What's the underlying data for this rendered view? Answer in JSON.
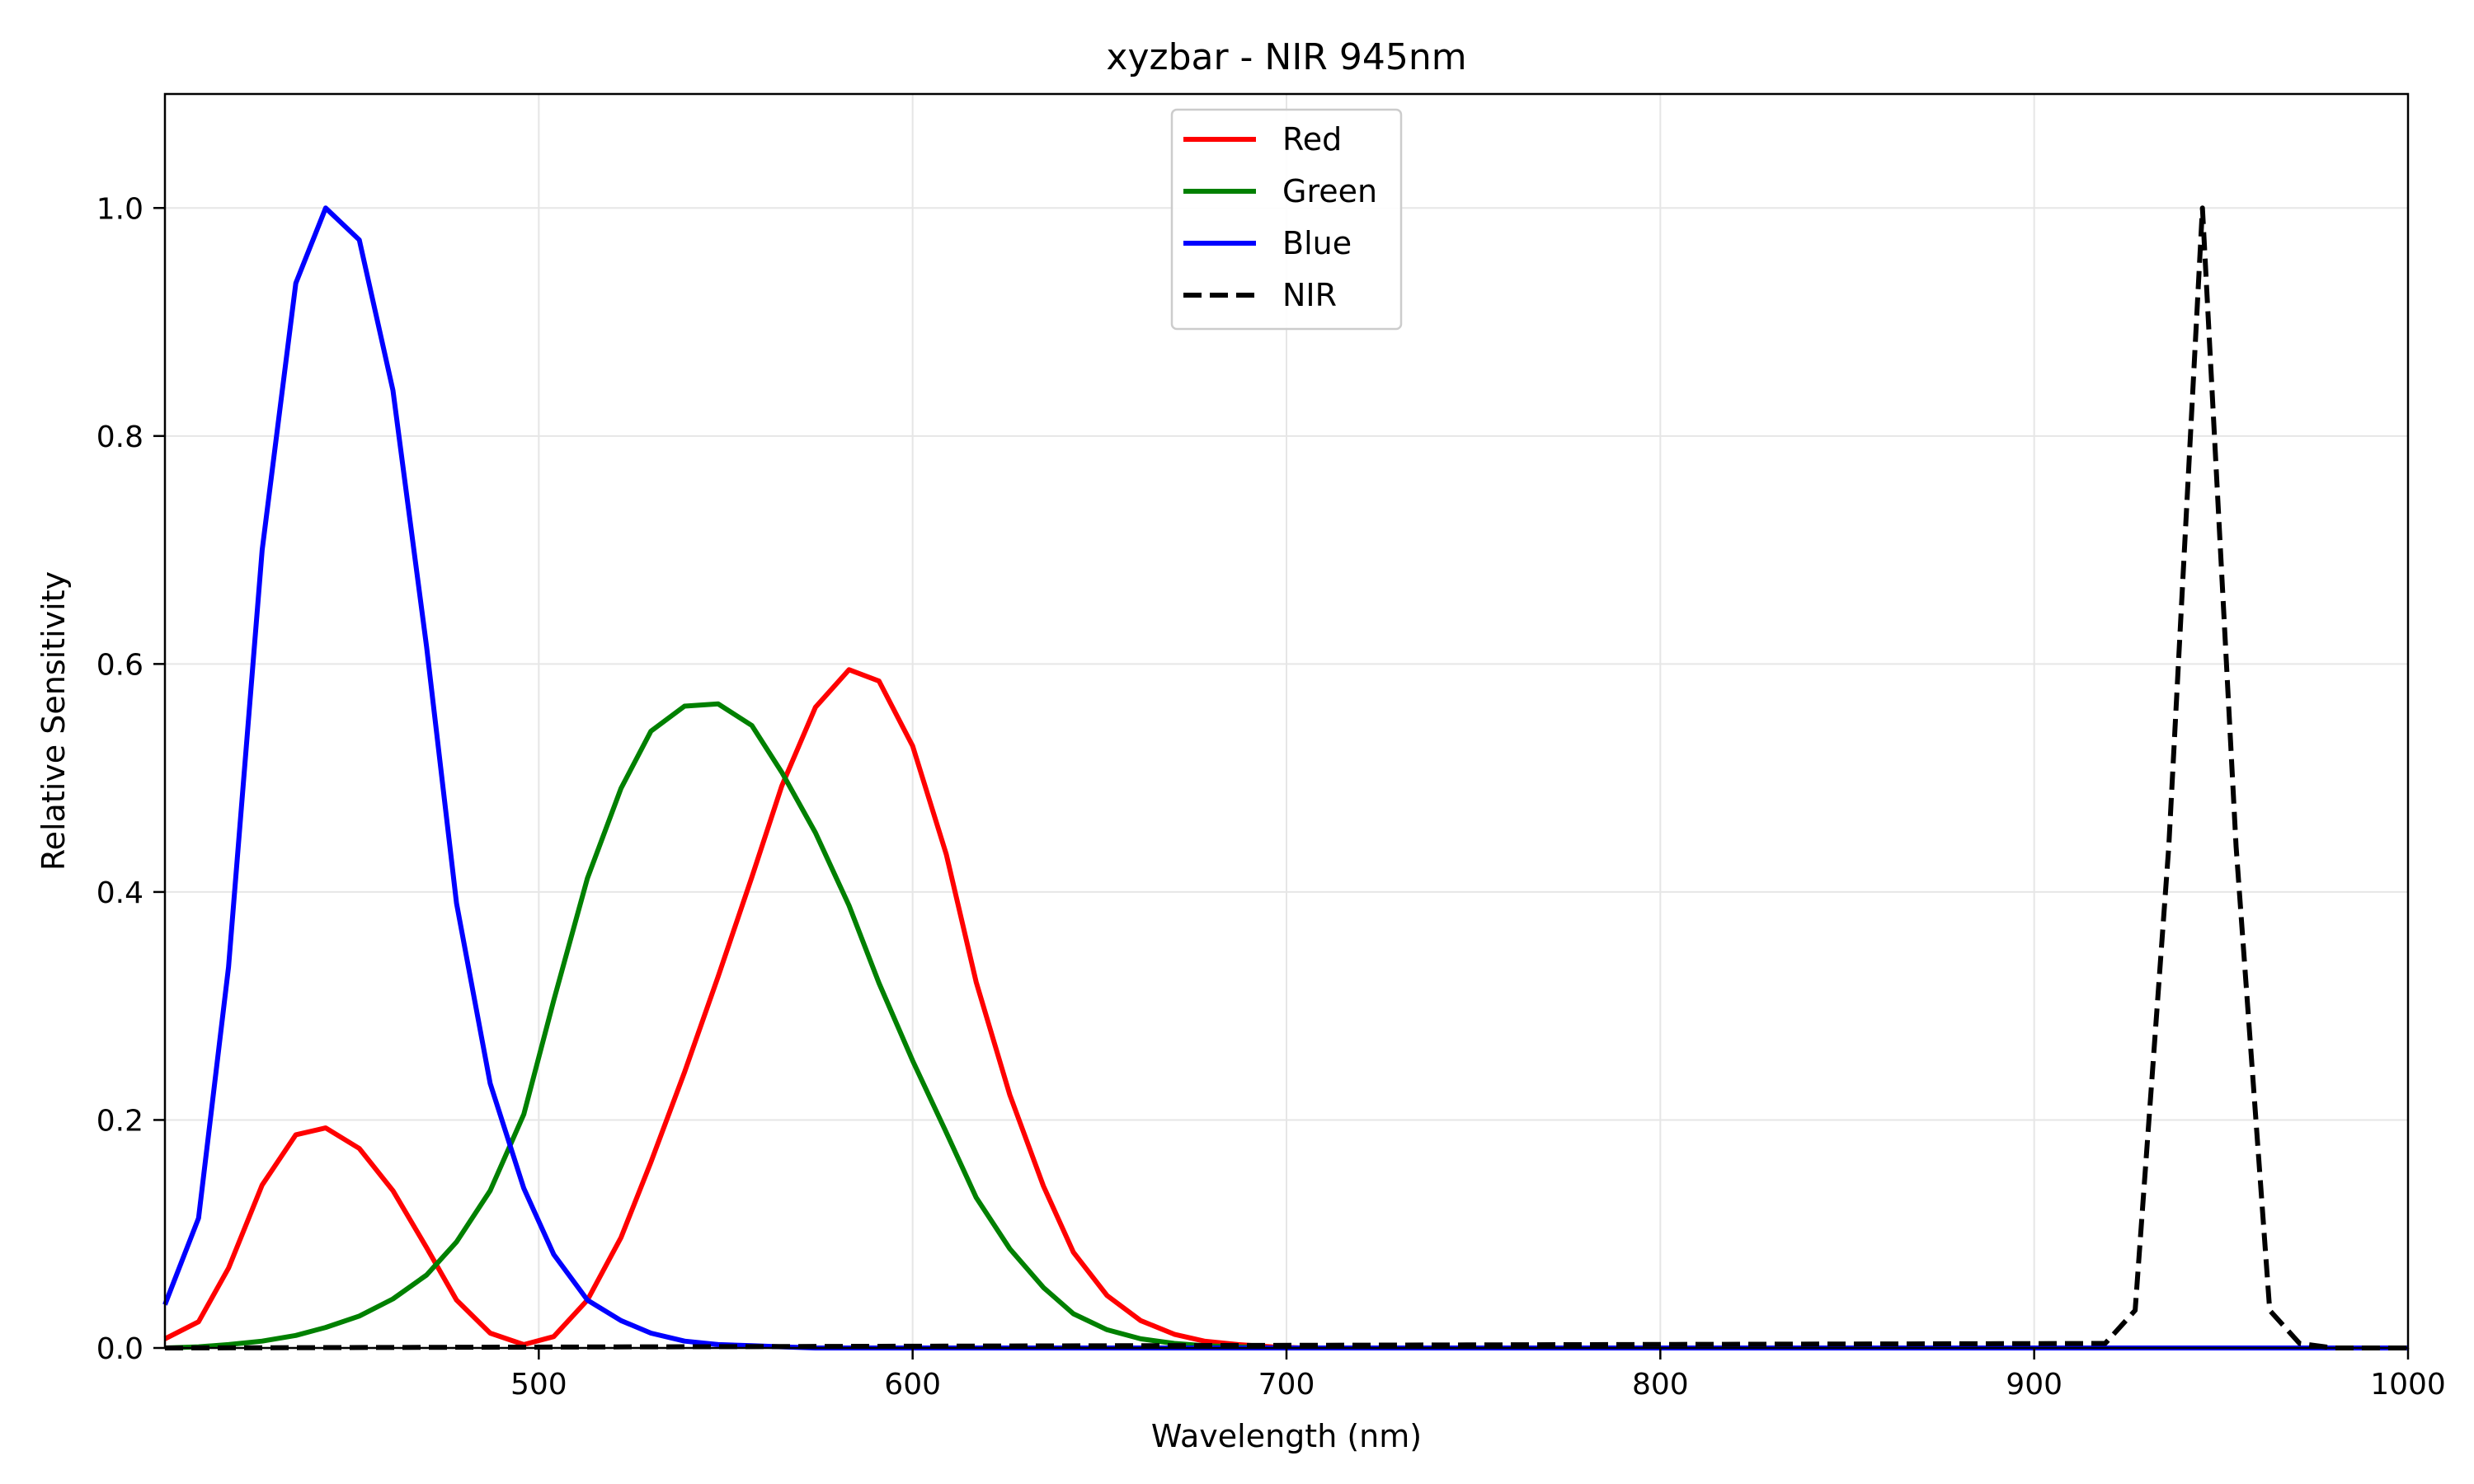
{
  "chart_data": {
    "type": "line",
    "title": "xyzbar - NIR 945nm",
    "xlabel": "Wavelength (nm)",
    "ylabel": "Relative Sensitivity",
    "xlim": [
      400,
      1000
    ],
    "ylim": [
      0,
      1.1
    ],
    "grid": true,
    "legend_position": "top-center",
    "x_ticks": [
      500,
      600,
      700,
      800,
      900,
      1000
    ],
    "x_tick_labels": [
      "500",
      "600",
      "700",
      "800",
      "900",
      "1000"
    ],
    "y_ticks": [
      0.0,
      0.2,
      0.4,
      0.6,
      0.8,
      1.0
    ],
    "y_tick_labels": [
      "0.0",
      "0.2",
      "0.4",
      "0.6",
      "0.8",
      "1.0"
    ],
    "series": [
      {
        "name": "Red",
        "color": "#ff0000",
        "dash": "solid",
        "x": [
          400,
          409,
          417,
          426,
          435,
          443,
          452,
          461,
          470,
          478,
          487,
          496,
          504,
          513,
          522,
          530,
          539,
          548,
          557,
          565,
          574,
          583,
          591,
          600,
          609,
          617,
          626,
          635,
          643,
          652,
          661,
          670,
          678,
          687,
          696,
          704,
          720,
          750,
          800,
          900,
          1000
        ],
        "y": [
          0.008,
          0.023,
          0.07,
          0.143,
          0.187,
          0.193,
          0.175,
          0.138,
          0.088,
          0.042,
          0.013,
          0.003,
          0.01,
          0.042,
          0.097,
          0.163,
          0.242,
          0.326,
          0.413,
          0.493,
          0.562,
          0.595,
          0.585,
          0.528,
          0.433,
          0.321,
          0.222,
          0.142,
          0.084,
          0.046,
          0.024,
          0.012,
          0.006,
          0.003,
          0.001,
          0.0,
          0.0,
          0.0,
          0.0,
          0.0,
          0.0
        ]
      },
      {
        "name": "Green",
        "color": "#008000",
        "dash": "solid",
        "x": [
          400,
          409,
          417,
          426,
          435,
          443,
          452,
          461,
          470,
          478,
          487,
          496,
          504,
          513,
          522,
          530,
          539,
          548,
          557,
          565,
          574,
          583,
          591,
          600,
          609,
          617,
          626,
          635,
          643,
          652,
          661,
          670,
          678,
          687,
          696,
          704,
          720,
          750,
          800,
          900,
          1000
        ],
        "y": [
          0.0,
          0.001,
          0.003,
          0.006,
          0.011,
          0.018,
          0.028,
          0.043,
          0.064,
          0.093,
          0.138,
          0.205,
          0.305,
          0.412,
          0.491,
          0.541,
          0.563,
          0.565,
          0.546,
          0.505,
          0.452,
          0.388,
          0.32,
          0.252,
          0.189,
          0.132,
          0.087,
          0.053,
          0.03,
          0.016,
          0.008,
          0.004,
          0.002,
          0.001,
          0.0,
          0.0,
          0.0,
          0.0,
          0.0,
          0.0,
          0.0
        ]
      },
      {
        "name": "Blue",
        "color": "#0000ff",
        "dash": "solid",
        "x": [
          400,
          409,
          417,
          426,
          435,
          443,
          452,
          461,
          470,
          478,
          487,
          496,
          504,
          513,
          522,
          530,
          539,
          548,
          557,
          565,
          574,
          583,
          591,
          600,
          650,
          700,
          800,
          900,
          1000
        ],
        "y": [
          0.038,
          0.114,
          0.334,
          0.7,
          0.934,
          1.0,
          0.972,
          0.84,
          0.615,
          0.39,
          0.232,
          0.14,
          0.082,
          0.042,
          0.024,
          0.013,
          0.006,
          0.003,
          0.002,
          0.001,
          0.0,
          0.0,
          0.0,
          0.0,
          0.0,
          0.0,
          0.0,
          0.0,
          0.0
        ]
      },
      {
        "name": "NIR",
        "color": "#000000",
        "dash": "dashed",
        "x": [
          400,
          919,
          927,
          936,
          945,
          954,
          963,
          971,
          980,
          1000
        ],
        "y": [
          0.0,
          0.004,
          0.033,
          0.44,
          1.0,
          0.44,
          0.033,
          0.004,
          0.0,
          0.0
        ]
      }
    ]
  }
}
